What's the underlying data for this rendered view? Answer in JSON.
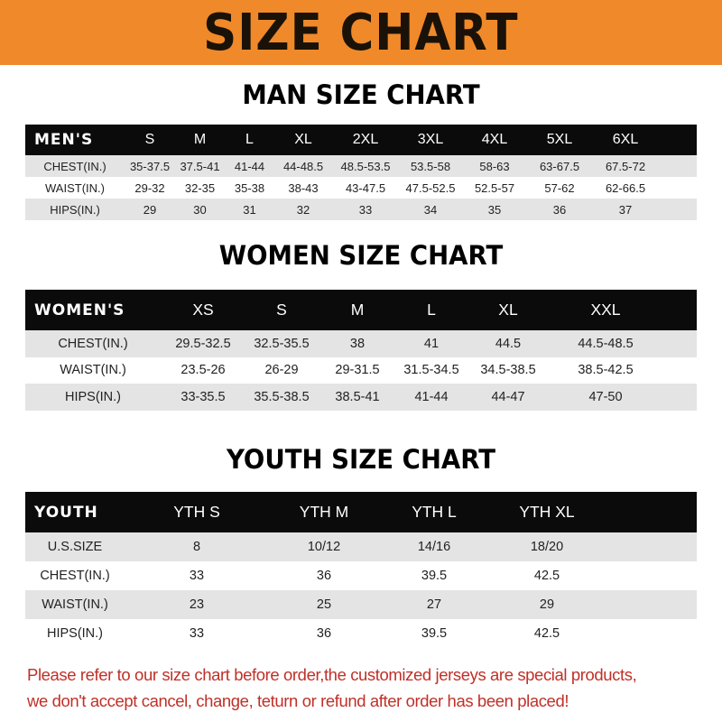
{
  "banner": {
    "title": "SIZE CHART",
    "color": "#f0892a"
  },
  "men": {
    "title": "MAN SIZE CHART",
    "header": [
      "MEN'S",
      "S",
      "M",
      "L",
      "XL",
      "2XL",
      "3XL",
      "4XL",
      "5XL",
      "6XL"
    ],
    "rows": [
      [
        "CHEST(IN.)",
        "35-37.5",
        "37.5-41",
        "41-44",
        "44-48.5",
        "48.5-53.5",
        "53.5-58",
        "58-63",
        "63-67.5",
        "67.5-72"
      ],
      [
        "WAIST(IN.)",
        "29-32",
        "32-35",
        "35-38",
        "38-43",
        "43-47.5",
        "47.5-52.5",
        "52.5-57",
        "57-62",
        "62-66.5"
      ],
      [
        "HIPS(IN.)",
        "29",
        "30",
        "31",
        "32",
        "33",
        "34",
        "35",
        "36",
        "37"
      ]
    ]
  },
  "women": {
    "title": "WOMEN SIZE CHART",
    "header": [
      "WOMEN'S",
      "XS",
      "S",
      "M",
      "L",
      "XL",
      "XXL"
    ],
    "rows": [
      [
        "CHEST(IN.)",
        "29.5-32.5",
        "32.5-35.5",
        "38",
        "41",
        "44.5",
        "44.5-48.5"
      ],
      [
        "WAIST(IN.)",
        "23.5-26",
        "26-29",
        "29-31.5",
        "31.5-34.5",
        "34.5-38.5",
        "38.5-42.5"
      ],
      [
        "HIPS(IN.)",
        "33-35.5",
        "35.5-38.5",
        "38.5-41",
        "41-44",
        "44-47",
        "47-50"
      ]
    ]
  },
  "youth": {
    "title": "YOUTH SIZE CHART",
    "header": [
      "YOUTH",
      "YTH S",
      "YTH M",
      "YTH L",
      "YTH XL"
    ],
    "rows": [
      [
        "U.S.SIZE",
        "8",
        "10/12",
        "14/16",
        "18/20"
      ],
      [
        "CHEST(IN.)",
        "33",
        "36",
        "39.5",
        "42.5"
      ],
      [
        "WAIST(IN.)",
        "23",
        "25",
        "27",
        "29"
      ],
      [
        "HIPS(IN.)",
        "33",
        "36",
        "39.5",
        "42.5"
      ]
    ]
  },
  "note": {
    "line1": "Please refer to our size chart before order,the customized jerseys are special products,",
    "line2": "we don't accept cancel, change, teturn or refund after order has been placed!",
    "color": "#c03028"
  }
}
